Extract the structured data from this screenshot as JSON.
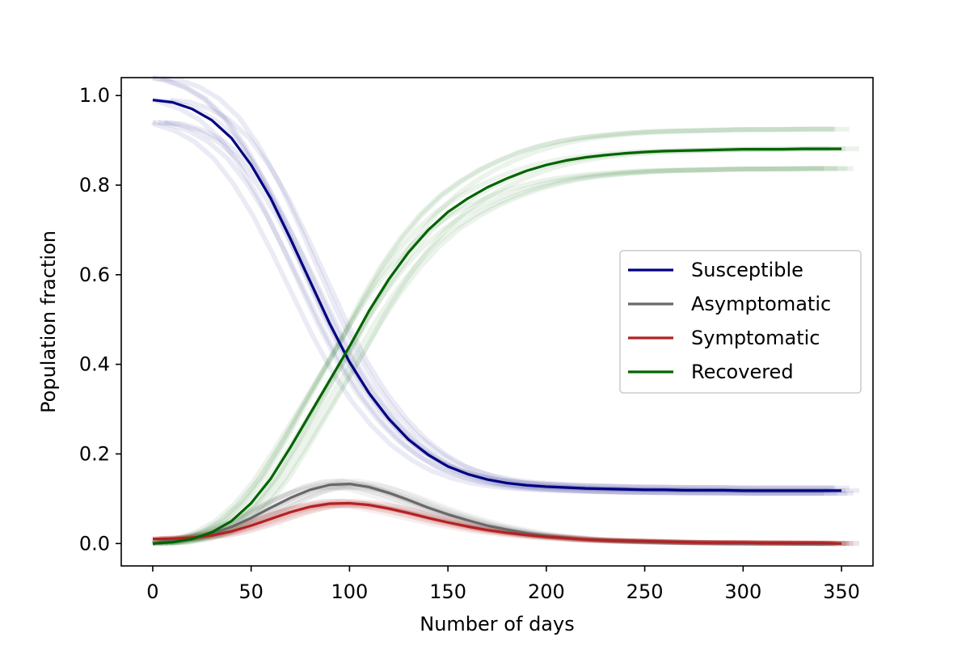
{
  "chart_data": {
    "type": "line",
    "title": "",
    "xlabel": "Number of days",
    "ylabel": "Population fraction",
    "xlim": [
      -16,
      366
    ],
    "ylim": [
      -0.05,
      1.04
    ],
    "xticks": [
      0,
      50,
      100,
      150,
      200,
      250,
      300,
      350
    ],
    "yticks": [
      0.0,
      0.2,
      0.4,
      0.6,
      0.8,
      1.0
    ],
    "xtick_labels": [
      "0",
      "50",
      "100",
      "150",
      "200",
      "250",
      "300",
      "350"
    ],
    "ytick_labels": [
      "0.0",
      "0.2",
      "0.4",
      "0.6",
      "0.8",
      "1.0"
    ],
    "grid": false,
    "legend_position": "center-right",
    "ensemble_uncertainty_bands": true,
    "x": [
      0,
      10,
      20,
      30,
      40,
      50,
      60,
      70,
      80,
      90,
      100,
      110,
      120,
      130,
      140,
      150,
      160,
      170,
      180,
      190,
      200,
      210,
      220,
      230,
      240,
      250,
      260,
      270,
      280,
      290,
      300,
      310,
      320,
      330,
      340,
      350
    ],
    "series": [
      {
        "name": "Susceptible",
        "color": "#000080",
        "values": [
          0.99,
          0.985,
          0.97,
          0.945,
          0.905,
          0.845,
          0.77,
          0.68,
          0.585,
          0.49,
          0.405,
          0.335,
          0.278,
          0.232,
          0.198,
          0.172,
          0.155,
          0.143,
          0.135,
          0.13,
          0.127,
          0.125,
          0.123,
          0.122,
          0.121,
          0.12,
          0.12,
          0.119,
          0.119,
          0.119,
          0.118,
          0.118,
          0.118,
          0.118,
          0.118,
          0.118
        ]
      },
      {
        "name": "Asymptomatic",
        "color": "#696969",
        "values": [
          0.0,
          0.005,
          0.012,
          0.022,
          0.037,
          0.057,
          0.08,
          0.102,
          0.12,
          0.131,
          0.133,
          0.126,
          0.113,
          0.097,
          0.08,
          0.065,
          0.052,
          0.04,
          0.031,
          0.023,
          0.017,
          0.013,
          0.009,
          0.007,
          0.005,
          0.004,
          0.003,
          0.002,
          0.002,
          0.001,
          0.001,
          0.001,
          0.001,
          0.0,
          0.0,
          0.0
        ]
      },
      {
        "name": "Symptomatic",
        "color": "#b22222",
        "values": [
          0.01,
          0.011,
          0.013,
          0.018,
          0.027,
          0.04,
          0.055,
          0.07,
          0.082,
          0.089,
          0.09,
          0.086,
          0.078,
          0.068,
          0.057,
          0.047,
          0.038,
          0.03,
          0.024,
          0.019,
          0.015,
          0.012,
          0.009,
          0.007,
          0.006,
          0.005,
          0.004,
          0.003,
          0.002,
          0.002,
          0.002,
          0.001,
          0.001,
          0.001,
          0.001,
          0.0
        ]
      },
      {
        "name": "Recovered",
        "color": "#006400",
        "values": [
          0.0,
          0.003,
          0.01,
          0.025,
          0.05,
          0.09,
          0.145,
          0.215,
          0.29,
          0.365,
          0.44,
          0.52,
          0.59,
          0.65,
          0.7,
          0.74,
          0.77,
          0.795,
          0.815,
          0.832,
          0.845,
          0.855,
          0.862,
          0.867,
          0.871,
          0.874,
          0.876,
          0.877,
          0.878,
          0.879,
          0.88,
          0.88,
          0.88,
          0.881,
          0.881,
          0.881
        ]
      }
    ]
  }
}
